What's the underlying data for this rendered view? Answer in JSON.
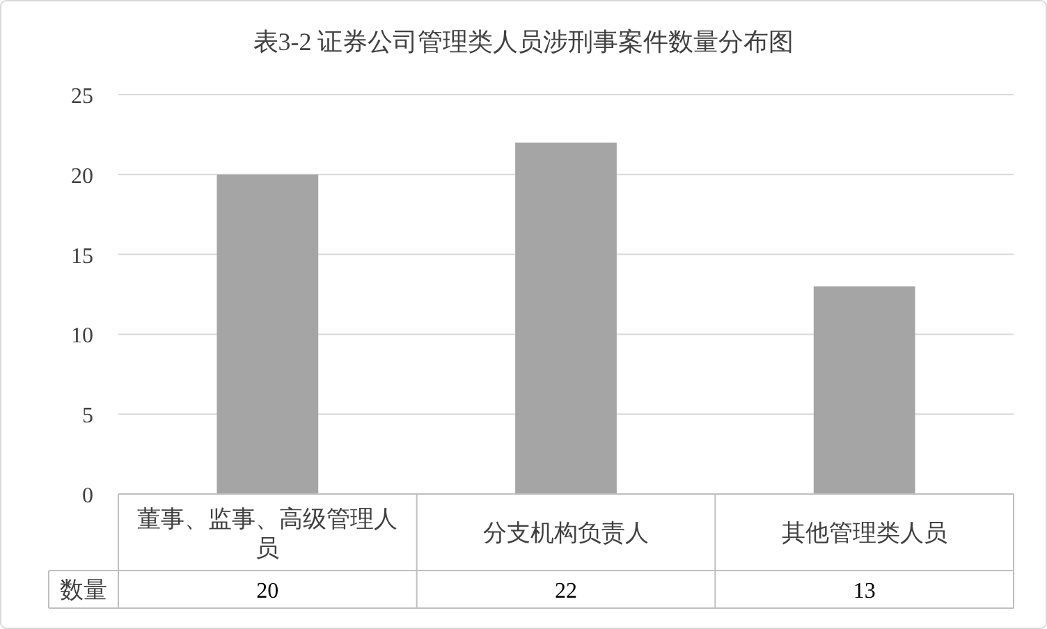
{
  "chart_data": {
    "type": "bar",
    "title": "表3-2 证券公司管理类人员涉刑事案件数量分布图",
    "categories": [
      "董事、监事、高级管理人员",
      "分支机构负责人",
      "其他管理类人员"
    ],
    "series": [
      {
        "name": "数量",
        "color": "#a5a5a5",
        "values": [
          20,
          22,
          13
        ]
      }
    ],
    "ylim": [
      0,
      25
    ],
    "yticks": [
      0,
      5,
      10,
      15,
      20,
      25
    ],
    "grid": "y",
    "data_labels": true
  }
}
